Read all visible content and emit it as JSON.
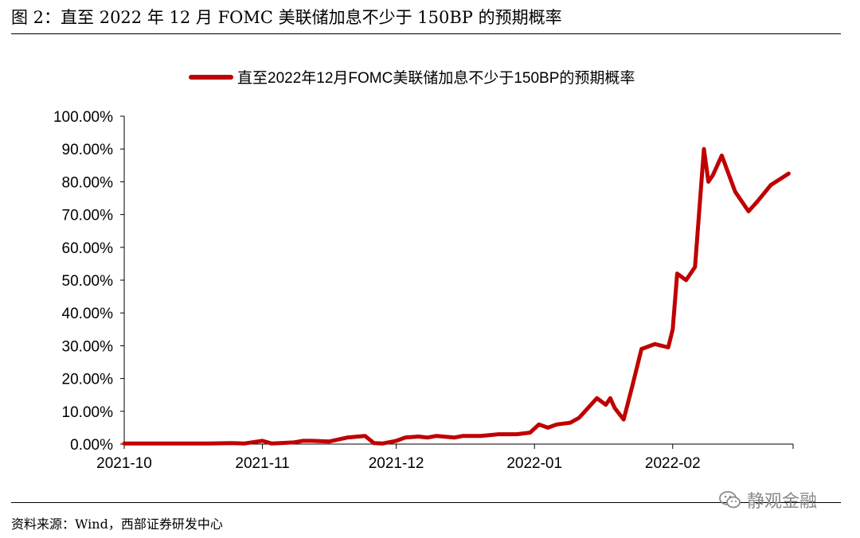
{
  "figure": {
    "title": "图 2：直至 2022 年 12 月 FOMC 美联储加息不少于 150BP 的预期概率",
    "source": "资料来源：Wind，西部证券研发中心",
    "watermark": "静观金融",
    "watermark_icon": "wechat-icon"
  },
  "chart_data": {
    "type": "line",
    "legend_position": "top-center",
    "grid": false,
    "y_tick_labels": [
      "0.00%",
      "10.00%",
      "20.00%",
      "30.00%",
      "40.00%",
      "50.00%",
      "60.00%",
      "70.00%",
      "80.00%",
      "90.00%",
      "100.00%"
    ],
    "ylim": [
      0,
      100
    ],
    "x_tick_labels": [
      "2021-10",
      "2021-11",
      "2021-12",
      "2022-01",
      "2022-02"
    ],
    "xlim": [
      "2021-10-01",
      "2022-02-28"
    ],
    "colors": {
      "series": "#C00000",
      "axis": "#000000"
    },
    "series": [
      {
        "name": "直至2022年12月FOMC美联储加息不少于150BP的预期概率",
        "x": [
          "2021-10-01",
          "2021-10-05",
          "2021-10-10",
          "2021-10-15",
          "2021-10-20",
          "2021-10-25",
          "2021-10-28",
          "2021-11-01",
          "2021-11-03",
          "2021-11-05",
          "2021-11-08",
          "2021-11-10",
          "2021-11-12",
          "2021-11-16",
          "2021-11-20",
          "2021-11-24",
          "2021-11-26",
          "2021-11-28",
          "2021-12-01",
          "2021-12-03",
          "2021-12-06",
          "2021-12-08",
          "2021-12-10",
          "2021-12-14",
          "2021-12-16",
          "2021-12-20",
          "2021-12-24",
          "2021-12-28",
          "2021-12-31",
          "2022-01-02",
          "2022-01-04",
          "2022-01-06",
          "2022-01-09",
          "2022-01-11",
          "2022-01-13",
          "2022-01-15",
          "2022-01-17",
          "2022-01-18",
          "2022-01-19",
          "2022-01-21",
          "2022-01-23",
          "2022-01-25",
          "2022-01-26",
          "2022-01-27",
          "2022-01-28",
          "2022-01-31",
          "2022-02-01",
          "2022-02-02",
          "2022-02-04",
          "2022-02-06",
          "2022-02-08",
          "2022-02-09",
          "2022-02-10",
          "2022-02-11",
          "2022-02-12",
          "2022-02-15",
          "2022-02-18",
          "2022-02-20",
          "2022-02-23",
          "2022-02-27"
        ],
        "values": [
          0.2,
          0.2,
          0.2,
          0.2,
          0.2,
          0.3,
          0.2,
          1.0,
          0.2,
          0.3,
          0.5,
          1.0,
          1.0,
          0.8,
          2.0,
          2.5,
          0.3,
          0.2,
          1.0,
          2.0,
          2.3,
          2.0,
          2.5,
          2.0,
          2.5,
          2.5,
          3.0,
          3.0,
          3.5,
          6.0,
          5.0,
          6.0,
          6.5,
          8.0,
          11.0,
          14.0,
          12.0,
          14.0,
          11.0,
          7.5,
          18.0,
          29.0,
          29.5,
          30.0,
          30.5,
          29.5,
          35.0,
          52.0,
          50.0,
          54.0,
          90.0,
          80.0,
          82.0,
          85.0,
          88.0,
          77.0,
          71.0,
          74.0,
          79.0,
          82.5
        ]
      }
    ]
  }
}
